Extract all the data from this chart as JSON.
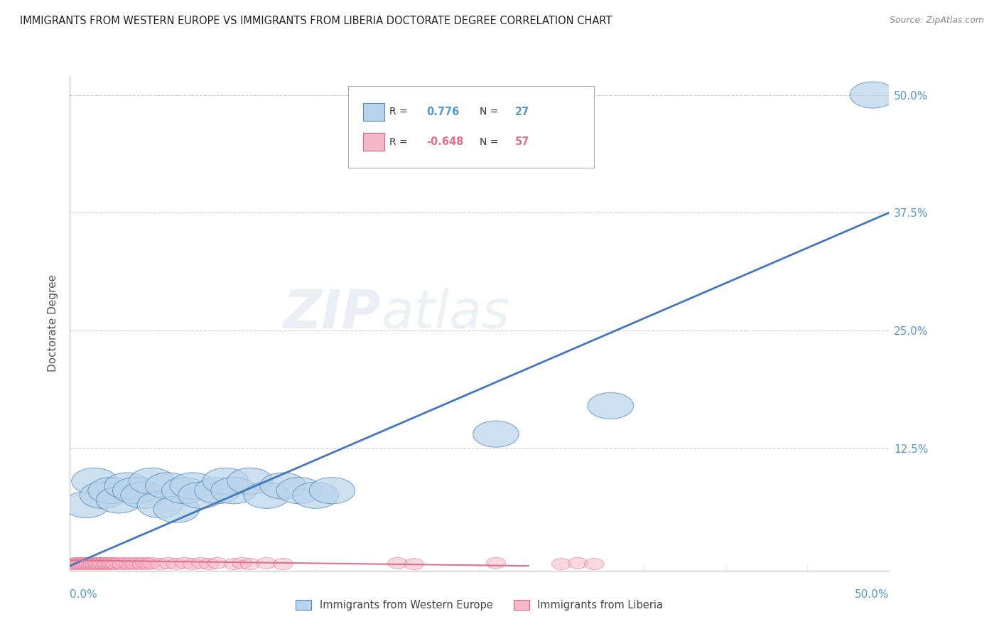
{
  "title": "IMMIGRANTS FROM WESTERN EUROPE VS IMMIGRANTS FROM LIBERIA DOCTORATE DEGREE CORRELATION CHART",
  "source": "Source: ZipAtlas.com",
  "ylabel": "Doctorate Degree",
  "xlim": [
    0.0,
    0.5
  ],
  "ylim": [
    -0.005,
    0.52
  ],
  "watermark_zip": "ZIP",
  "watermark_atlas": "atlas",
  "legend_blue_r": "0.776",
  "legend_blue_n": "27",
  "legend_pink_r": "-0.648",
  "legend_pink_n": "57",
  "legend_blue_label": "Immigrants from Western Europe",
  "legend_pink_label": "Immigrants from Liberia",
  "blue_fill": "#b8d4eb",
  "blue_edge": "#5588bb",
  "pink_fill": "#f5b8c8",
  "pink_edge": "#e06080",
  "line_blue": "#4477bb",
  "line_pink": "#dd7090",
  "title_color": "#222222",
  "axis_tick_color": "#5599cc",
  "grid_color": "#cccccc",
  "bg": "#ffffff",
  "blue_x": [
    0.01,
    0.015,
    0.02,
    0.025,
    0.03,
    0.035,
    0.04,
    0.045,
    0.05,
    0.055,
    0.06,
    0.065,
    0.07,
    0.075,
    0.08,
    0.09,
    0.095,
    0.1,
    0.11,
    0.12,
    0.13,
    0.14,
    0.15,
    0.16,
    0.26,
    0.33,
    0.49
  ],
  "blue_y": [
    0.065,
    0.09,
    0.075,
    0.08,
    0.07,
    0.085,
    0.08,
    0.075,
    0.09,
    0.065,
    0.085,
    0.06,
    0.08,
    0.085,
    0.075,
    0.08,
    0.09,
    0.08,
    0.09,
    0.075,
    0.085,
    0.08,
    0.075,
    0.08,
    0.14,
    0.17,
    0.5
  ],
  "pink_x": [
    0.002,
    0.003,
    0.004,
    0.005,
    0.006,
    0.007,
    0.008,
    0.009,
    0.01,
    0.011,
    0.012,
    0.013,
    0.014,
    0.015,
    0.016,
    0.017,
    0.018,
    0.019,
    0.02,
    0.021,
    0.022,
    0.023,
    0.024,
    0.025,
    0.026,
    0.027,
    0.028,
    0.03,
    0.032,
    0.034,
    0.036,
    0.038,
    0.04,
    0.042,
    0.044,
    0.046,
    0.048,
    0.05,
    0.055,
    0.06,
    0.065,
    0.07,
    0.075,
    0.08,
    0.085,
    0.09,
    0.1,
    0.105,
    0.11,
    0.12,
    0.13,
    0.2,
    0.21,
    0.26,
    0.3,
    0.31,
    0.32
  ],
  "pink_y": [
    0.002,
    0.003,
    0.002,
    0.003,
    0.002,
    0.003,
    0.002,
    0.003,
    0.002,
    0.003,
    0.002,
    0.003,
    0.002,
    0.003,
    0.002,
    0.003,
    0.002,
    0.003,
    0.002,
    0.003,
    0.002,
    0.003,
    0.002,
    0.003,
    0.002,
    0.003,
    0.002,
    0.003,
    0.002,
    0.003,
    0.002,
    0.003,
    0.002,
    0.003,
    0.002,
    0.003,
    0.002,
    0.003,
    0.002,
    0.003,
    0.002,
    0.003,
    0.002,
    0.003,
    0.002,
    0.003,
    0.002,
    0.003,
    0.002,
    0.003,
    0.002,
    0.003,
    0.002,
    0.003,
    0.002,
    0.003,
    0.002
  ],
  "blue_line_x": [
    0.0,
    0.5
  ],
  "blue_line_y": [
    0.0,
    0.375
  ],
  "pink_line_x": [
    0.0,
    0.28
  ],
  "pink_line_y": [
    0.006,
    0.0
  ],
  "ytick_vals": [
    0.0,
    0.125,
    0.25,
    0.375,
    0.5
  ],
  "ytick_labels": [
    "",
    "12.5%",
    "25.0%",
    "37.5%",
    "50.0%"
  ],
  "xtick_left_label": "0.0%",
  "xtick_right_label": "50.0%"
}
